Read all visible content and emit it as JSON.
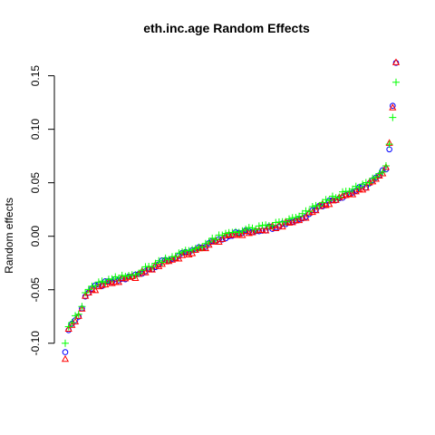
{
  "chart_data": {
    "type": "scatter",
    "title": "eth.inc.age Random Effects",
    "xlabel": "",
    "ylabel": "Random effects",
    "ylim": [
      -0.118,
      0.17
    ],
    "y_ticks": [
      -0.1,
      -0.05,
      0.0,
      0.05,
      0.1,
      0.15
    ],
    "y_tick_labels": [
      "-0.10",
      "-0.05",
      "0.00",
      "0.05",
      "0.10",
      "0.15"
    ],
    "x_axis_shown": false,
    "grid": false,
    "legend": "none",
    "series": [
      {
        "marker": "circle",
        "color": "#0000ff"
      },
      {
        "marker": "triangle",
        "color": "#ff0000"
      },
      {
        "marker": "plus",
        "color": "#00ff00"
      }
    ],
    "n_points": 100,
    "curve_anchors": [
      [
        0,
        -0.11
      ],
      [
        1,
        -0.086
      ],
      [
        2,
        -0.082
      ],
      [
        3,
        -0.078
      ],
      [
        4,
        -0.075
      ],
      [
        5,
        -0.068
      ],
      [
        6,
        -0.055
      ],
      [
        8,
        -0.049
      ],
      [
        12,
        -0.044
      ],
      [
        20,
        -0.038
      ],
      [
        30,
        -0.023
      ],
      [
        40,
        -0.012
      ],
      [
        45,
        -0.004
      ],
      [
        50,
        0.002
      ],
      [
        60,
        0.007
      ],
      [
        70,
        0.016
      ],
      [
        75,
        0.026
      ],
      [
        80,
        0.034
      ],
      [
        85,
        0.04
      ],
      [
        90,
        0.047
      ],
      [
        94,
        0.056
      ],
      [
        96,
        0.064
      ],
      [
        97,
        0.083
      ],
      [
        98,
        0.122
      ],
      [
        99,
        0.163
      ]
    ],
    "markers_shown": "",
    "sort": ""
  }
}
